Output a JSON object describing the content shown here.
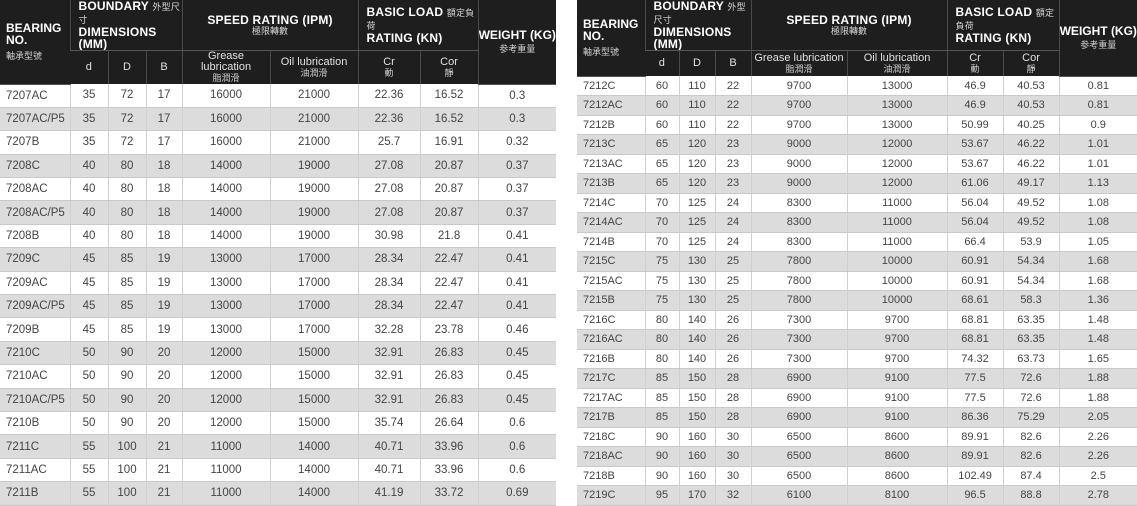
{
  "header": {
    "bearing_no": "BEARING NO.",
    "bearing_cn": "軸承型號",
    "boundary_title": "BOUNDARY",
    "boundary_cn": "外型尺寸",
    "boundary_title2": "DIMENSIONS (MM)",
    "speed_title": "SPEED RATING (IPM)",
    "speed_cn": "極限轉數",
    "load_title": "BASIC LOAD",
    "load_cn": "額定負荷",
    "load_title2": "RATING (KN)",
    "weight_title": "WEIGHT (KG)",
    "weight_cn": "参考重量",
    "col_d": "d",
    "col_D": "D",
    "col_B": "B",
    "grease": "Grease lubrication",
    "grease_cn": "脂潤滑",
    "oil": "Oil lubrication",
    "oil_cn": "油潤滑",
    "cr": "Cr",
    "cr_cn": "動",
    "cor": "Cor",
    "cor_cn": "靜"
  },
  "left_rows": [
    [
      "7207AC",
      "35",
      "72",
      "17",
      "16000",
      "21000",
      "22.36",
      "16.52",
      "0.3"
    ],
    [
      "7207AC/P5",
      "35",
      "72",
      "17",
      "16000",
      "21000",
      "22.36",
      "16.52",
      "0.3"
    ],
    [
      "7207B",
      "35",
      "72",
      "17",
      "16000",
      "21000",
      "25.7",
      "16.91",
      "0.32"
    ],
    [
      "7208C",
      "40",
      "80",
      "18",
      "14000",
      "19000",
      "27.08",
      "20.87",
      "0.37"
    ],
    [
      "7208AC",
      "40",
      "80",
      "18",
      "14000",
      "19000",
      "27.08",
      "20.87",
      "0.37"
    ],
    [
      "7208AC/P5",
      "40",
      "80",
      "18",
      "14000",
      "19000",
      "27.08",
      "20.87",
      "0.37"
    ],
    [
      "7208B",
      "40",
      "80",
      "18",
      "14000",
      "19000",
      "30.98",
      "21.8",
      "0.41"
    ],
    [
      "7209C",
      "45",
      "85",
      "19",
      "13000",
      "17000",
      "28.34",
      "22.47",
      "0.41"
    ],
    [
      "7209AC",
      "45",
      "85",
      "19",
      "13000",
      "17000",
      "28.34",
      "22.47",
      "0.41"
    ],
    [
      "7209AC/P5",
      "45",
      "85",
      "19",
      "13000",
      "17000",
      "28.34",
      "22.47",
      "0.41"
    ],
    [
      "7209B",
      "45",
      "85",
      "19",
      "13000",
      "17000",
      "32.28",
      "23.78",
      "0.46"
    ],
    [
      "7210C",
      "50",
      "90",
      "20",
      "12000",
      "15000",
      "32.91",
      "26.83",
      "0.45"
    ],
    [
      "7210AC",
      "50",
      "90",
      "20",
      "12000",
      "15000",
      "32.91",
      "26.83",
      "0.45"
    ],
    [
      "7210AC/P5",
      "50",
      "90",
      "20",
      "12000",
      "15000",
      "32.91",
      "26.83",
      "0.45"
    ],
    [
      "7210B",
      "50",
      "90",
      "20",
      "12000",
      "15000",
      "35.74",
      "26.64",
      "0.6"
    ],
    [
      "7211C",
      "55",
      "100",
      "21",
      "11000",
      "14000",
      "40.71",
      "33.96",
      "0.6"
    ],
    [
      "7211AC",
      "55",
      "100",
      "21",
      "11000",
      "14000",
      "40.71",
      "33.96",
      "0.6"
    ],
    [
      "7211B",
      "55",
      "100",
      "21",
      "11000",
      "14000",
      "41.19",
      "33.72",
      "0.69"
    ]
  ],
  "right_rows": [
    [
      "7212C",
      "60",
      "110",
      "22",
      "9700",
      "13000",
      "46.9",
      "40.53",
      "0.81"
    ],
    [
      "7212AC",
      "60",
      "110",
      "22",
      "9700",
      "13000",
      "46.9",
      "40.53",
      "0.81"
    ],
    [
      "7212B",
      "60",
      "110",
      "22",
      "9700",
      "13000",
      "50.99",
      "40.25",
      "0.9"
    ],
    [
      "7213C",
      "65",
      "120",
      "23",
      "9000",
      "12000",
      "53.67",
      "46.22",
      "1.01"
    ],
    [
      "7213AC",
      "65",
      "120",
      "23",
      "9000",
      "12000",
      "53.67",
      "46.22",
      "1.01"
    ],
    [
      "7213B",
      "65",
      "120",
      "23",
      "9000",
      "12000",
      "61.06",
      "49.17",
      "1.13"
    ],
    [
      "7214C",
      "70",
      "125",
      "24",
      "8300",
      "11000",
      "56.04",
      "49.52",
      "1.08"
    ],
    [
      "7214AC",
      "70",
      "125",
      "24",
      "8300",
      "11000",
      "56.04",
      "49.52",
      "1.08"
    ],
    [
      "7214B",
      "70",
      "125",
      "24",
      "8300",
      "11000",
      "66.4",
      "53.9",
      "1.05"
    ],
    [
      "7215C",
      "75",
      "130",
      "25",
      "7800",
      "10000",
      "60.91",
      "54.34",
      "1.68"
    ],
    [
      "7215AC",
      "75",
      "130",
      "25",
      "7800",
      "10000",
      "60.91",
      "54.34",
      "1.68"
    ],
    [
      "7215B",
      "75",
      "130",
      "25",
      "7800",
      "10000",
      "68.61",
      "58.3",
      "1.36"
    ],
    [
      "7216C",
      "80",
      "140",
      "26",
      "7300",
      "9700",
      "68.81",
      "63.35",
      "1.48"
    ],
    [
      "7216AC",
      "80",
      "140",
      "26",
      "7300",
      "9700",
      "68.81",
      "63.35",
      "1.48"
    ],
    [
      "7216B",
      "80",
      "140",
      "26",
      "7300",
      "9700",
      "74.32",
      "63.73",
      "1.65"
    ],
    [
      "7217C",
      "85",
      "150",
      "28",
      "6900",
      "9100",
      "77.5",
      "72.6",
      "1.88"
    ],
    [
      "7217AC",
      "85",
      "150",
      "28",
      "6900",
      "9100",
      "77.5",
      "72.6",
      "1.88"
    ],
    [
      "7217B",
      "85",
      "150",
      "28",
      "6900",
      "9100",
      "86.36",
      "75.29",
      "2.05"
    ],
    [
      "7218C",
      "90",
      "160",
      "30",
      "6500",
      "8600",
      "89.91",
      "82.6",
      "2.26"
    ],
    [
      "7218AC",
      "90",
      "160",
      "30",
      "6500",
      "8600",
      "89.91",
      "82.6",
      "2.26"
    ],
    [
      "7218B",
      "90",
      "160",
      "30",
      "6500",
      "8600",
      "102.49",
      "87.4",
      "2.5"
    ],
    [
      "7219C",
      "95",
      "170",
      "32",
      "6100",
      "8100",
      "96.5",
      "88.8",
      "2.78"
    ]
  ]
}
